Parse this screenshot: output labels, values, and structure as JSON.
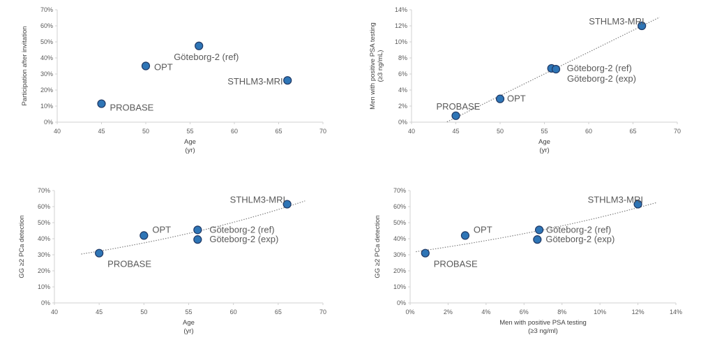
{
  "chart_data": [
    {
      "type": "scatter",
      "xlabel": [
        "Age",
        "(yr)"
      ],
      "ylabel": [
        "Participation after invitation"
      ],
      "xlim": [
        40,
        70
      ],
      "ylim": [
        0,
        0.7
      ],
      "x_ticks": [
        "40",
        "45",
        "50",
        "55",
        "60",
        "65",
        "70"
      ],
      "y_ticks": [
        "0%",
        "10%",
        "20%",
        "30%",
        "40%",
        "50%",
        "60%",
        "70%"
      ],
      "trendline": false,
      "points": [
        {
          "label": "PROBASE",
          "x": 45,
          "y": 0.115
        },
        {
          "label": "OPT",
          "x": 50,
          "y": 0.35
        },
        {
          "label": "Göteborg-2 (ref)",
          "x": 56,
          "y": 0.475
        },
        {
          "label": "STHLM3-MRI",
          "x": 66,
          "y": 0.26
        }
      ]
    },
    {
      "type": "scatter",
      "xlabel": [
        "Age",
        "(yr)"
      ],
      "ylabel": [
        "Men with positive PSA testing",
        "(≥3 ng/mL)"
      ],
      "xlim": [
        40,
        70
      ],
      "ylim": [
        0,
        0.14
      ],
      "x_ticks": [
        "40",
        "45",
        "50",
        "55",
        "60",
        "65",
        "70"
      ],
      "y_ticks": [
        "0%",
        "2%",
        "4%",
        "6%",
        "8%",
        "10%",
        "12%",
        "14%"
      ],
      "trendline": "linear",
      "points": [
        {
          "label": "PROBASE",
          "x": 45,
          "y": 0.008
        },
        {
          "label": "OPT",
          "x": 50,
          "y": 0.029
        },
        {
          "label": "Göteborg-2 (ref)",
          "x": 55.8,
          "y": 0.067
        },
        {
          "label": "Göteborg-2 (exp)",
          "x": 56.3,
          "y": 0.066
        },
        {
          "label": "STHLM3-MRI",
          "x": 66,
          "y": 0.12
        }
      ]
    },
    {
      "type": "scatter",
      "xlabel": [
        "Age",
        "(yr)"
      ],
      "ylabel": [
        "GG ≥2 PCa detection"
      ],
      "xlim": [
        40,
        70
      ],
      "ylim": [
        0,
        0.7
      ],
      "x_ticks": [
        "40",
        "45",
        "50",
        "55",
        "60",
        "65",
        "70"
      ],
      "y_ticks": [
        "0%",
        "10%",
        "20%",
        "30%",
        "40%",
        "50%",
        "60%",
        "70%"
      ],
      "trendline": "exponential",
      "points": [
        {
          "label": "PROBASE",
          "x": 45,
          "y": 0.31
        },
        {
          "label": "OPT",
          "x": 50,
          "y": 0.42
        },
        {
          "label": "Göteborg-2 (ref)",
          "x": 56,
          "y": 0.455
        },
        {
          "label": "Göteborg-2 (exp)",
          "x": 56,
          "y": 0.395
        },
        {
          "label": "STHLM3-MRI",
          "x": 66,
          "y": 0.615
        }
      ]
    },
    {
      "type": "scatter",
      "xlabel": [
        "Men with positive PSA testing",
        "(≥3 ng/ml)"
      ],
      "ylabel": [
        "GG ≥2 PCa detection"
      ],
      "xlim": [
        0,
        0.14
      ],
      "ylim": [
        0,
        0.7
      ],
      "x_ticks": [
        "0%",
        "2%",
        "4%",
        "6%",
        "8%",
        "10%",
        "12%",
        "14%"
      ],
      "y_ticks": [
        "0%",
        "10%",
        "20%",
        "30%",
        "40%",
        "50%",
        "60%",
        "70%"
      ],
      "trendline": "exponential",
      "points": [
        {
          "label": "PROBASE",
          "x": 0.008,
          "y": 0.31
        },
        {
          "label": "OPT",
          "x": 0.029,
          "y": 0.42
        },
        {
          "label": "Göteborg-2 (ref)",
          "x": 0.068,
          "y": 0.455
        },
        {
          "label": "Göteborg-2 (exp)",
          "x": 0.067,
          "y": 0.395
        },
        {
          "label": "STHLM3-MRI",
          "x": 0.12,
          "y": 0.615
        }
      ]
    }
  ]
}
